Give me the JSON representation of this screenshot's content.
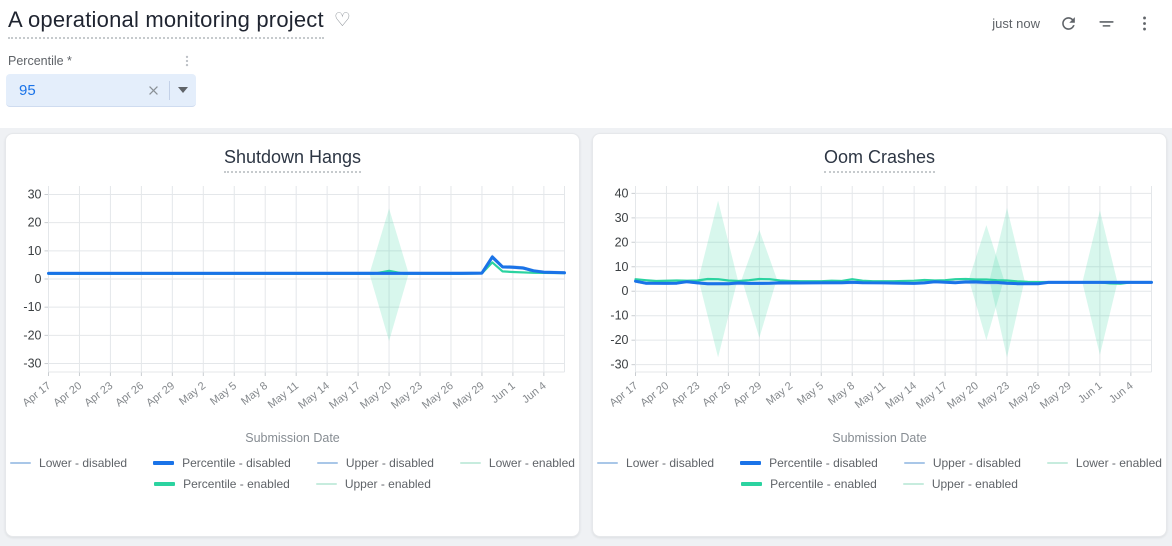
{
  "header": {
    "title": "A operational monitoring project",
    "last_refresh": "just now",
    "icons": {
      "favorite": "♡",
      "refresh": "refresh-icon",
      "filter": "filter-icon",
      "more": "more-vert-icon"
    }
  },
  "filter": {
    "label": "Percentile *",
    "value": "95",
    "icons": {
      "clear": "clear-x-icon",
      "dropdown": "caret-down-icon",
      "menu": "more-vert-icon"
    }
  },
  "colors": {
    "percentile_disabled": "#1a73e8",
    "percentile_enabled": "#2bd3a0",
    "bound_disabled": "#a9c7e8",
    "bound_enabled": "#c7ecde",
    "band_fill": "rgba(62,214,167,0.20)",
    "grid": "#e4e7ea",
    "tick": "#c9cdd1",
    "y_label": "#3c4043",
    "x_label": "#85898d"
  },
  "chart_data": [
    {
      "type": "line",
      "title": "Shutdown Hangs",
      "xlabel": "Submission Date",
      "x_tick_labels": [
        "Apr 17",
        "Apr 20",
        "Apr 23",
        "Apr 26",
        "Apr 29",
        "May 2",
        "May 5",
        "May 8",
        "May 11",
        "May 14",
        "May 17",
        "May 20",
        "May 23",
        "May 26",
        "May 29",
        "Jun 1",
        "Jun 4"
      ],
      "x_tick_days": [
        0,
        3,
        6,
        9,
        12,
        15,
        18,
        21,
        24,
        27,
        30,
        33,
        36,
        39,
        42,
        45,
        48
      ],
      "x_range": [
        0,
        50
      ],
      "ylim": [
        -33,
        33
      ],
      "y_ticks": [
        30,
        20,
        10,
        0,
        -10,
        -20,
        -30
      ],
      "series": [
        {
          "name": "Lower - disabled",
          "color": "bound_disabled",
          "width": 1.2,
          "points": [
            [
              0,
              1.65
            ],
            [
              42,
              1.7
            ],
            [
              43,
              7.2
            ],
            [
              44,
              3.9
            ],
            [
              45,
              3.8
            ],
            [
              46,
              3.5
            ],
            [
              47,
              2.6
            ],
            [
              48,
              2.1
            ],
            [
              50,
              2.0
            ]
          ]
        },
        {
          "name": "Upper - disabled",
          "color": "bound_disabled",
          "width": 1.2,
          "points": [
            [
              0,
              2.35
            ],
            [
              42,
              2.5
            ],
            [
              43,
              8.4
            ],
            [
              44,
              4.7
            ],
            [
              45,
              4.6
            ],
            [
              46,
              4.3
            ],
            [
              47,
              3.3
            ],
            [
              48,
              2.8
            ],
            [
              50,
              2.6
            ]
          ]
        },
        {
          "name": "Percentile - enabled",
          "color": "percentile_enabled",
          "width": 2.2,
          "points": [
            [
              0,
              1.85
            ],
            [
              10,
              1.85
            ],
            [
              20,
              1.85
            ],
            [
              31.5,
              1.85
            ],
            [
              33,
              2.9
            ],
            [
              34.5,
              1.85
            ],
            [
              40,
              1.85
            ],
            [
              42,
              2.0
            ],
            [
              43,
              5.9
            ],
            [
              44,
              2.7
            ],
            [
              45,
              2.5
            ],
            [
              47,
              2.2
            ],
            [
              50,
              2.1
            ]
          ]
        },
        {
          "name": "Percentile - disabled",
          "color": "percentile_disabled",
          "width": 3,
          "points": [
            [
              0,
              2
            ],
            [
              10,
              2
            ],
            [
              20,
              2
            ],
            [
              30,
              2
            ],
            [
              36,
              2
            ],
            [
              40,
              2
            ],
            [
              42,
              2.1
            ],
            [
              43,
              7.8
            ],
            [
              44,
              4.3
            ],
            [
              45,
              4.2
            ],
            [
              46,
              3.9
            ],
            [
              47,
              2.9
            ],
            [
              48,
              2.4
            ],
            [
              50,
              2.2
            ]
          ]
        }
      ],
      "bands": [
        {
          "center": 33,
          "half_width": 1.9,
          "upper": 25,
          "lower": -22,
          "base": 1.85
        }
      ],
      "legend": [
        {
          "label": "Lower - disabled",
          "color": "bound_disabled",
          "thick": false
        },
        {
          "label": "Percentile - disabled",
          "color": "percentile_disabled",
          "thick": true
        },
        {
          "label": "Upper - disabled",
          "color": "bound_disabled",
          "thick": false
        },
        {
          "label": "Lower - enabled",
          "color": "bound_enabled",
          "thick": false
        },
        {
          "label": "Percentile - enabled",
          "color": "percentile_enabled",
          "thick": true
        },
        {
          "label": "Upper - enabled",
          "color": "bound_enabled",
          "thick": false
        }
      ],
      "legend_row_split": 4
    },
    {
      "type": "line",
      "title": "Oom Crashes",
      "xlabel": "Submission Date",
      "x_tick_labels": [
        "Apr 17",
        "Apr 20",
        "Apr 23",
        "Apr 26",
        "Apr 29",
        "May 2",
        "May 5",
        "May 8",
        "May 11",
        "May 14",
        "May 17",
        "May 20",
        "May 23",
        "May 26",
        "May 29",
        "Jun 1",
        "Jun 4"
      ],
      "x_tick_days": [
        0,
        3,
        6,
        9,
        12,
        15,
        18,
        21,
        24,
        27,
        30,
        33,
        36,
        39,
        42,
        45,
        48
      ],
      "x_range": [
        0,
        50
      ],
      "ylim": [
        -33,
        43
      ],
      "y_ticks": [
        40,
        30,
        20,
        10,
        0,
        -10,
        -20,
        -30
      ],
      "series": [
        {
          "name": "Lower - disabled",
          "color": "bound_disabled",
          "width": 1.2,
          "points": [
            [
              0,
              3.7
            ],
            [
              1,
              2.9
            ],
            [
              5,
              3.5
            ],
            [
              7,
              2.7
            ],
            [
              12,
              2.8
            ],
            [
              20,
              3.1
            ],
            [
              29,
              3.5
            ],
            [
              36,
              2.9
            ],
            [
              40,
              3.2
            ],
            [
              50,
              3.2
            ]
          ]
        },
        {
          "name": "Upper - disabled",
          "color": "bound_disabled",
          "width": 1.2,
          "points": [
            [
              0,
              4.5
            ],
            [
              1,
              3.7
            ],
            [
              5,
              4.3
            ],
            [
              7,
              3.5
            ],
            [
              12,
              3.6
            ],
            [
              20,
              3.9
            ],
            [
              29,
              4.3
            ],
            [
              36,
              3.7
            ],
            [
              40,
              4.0
            ],
            [
              50,
              4.0
            ]
          ]
        },
        {
          "name": "Percentile - enabled",
          "color": "percentile_enabled",
          "width": 2.2,
          "points": [
            [
              0,
              4.9
            ],
            [
              1,
              4.5
            ],
            [
              2,
              4.2
            ],
            [
              4,
              4.4
            ],
            [
              5,
              4.3
            ],
            [
              6,
              4.4
            ],
            [
              7,
              5.0
            ],
            [
              8,
              4.9
            ],
            [
              9,
              4.4
            ],
            [
              10,
              4.2
            ],
            [
              11,
              4.5
            ],
            [
              12,
              5.0
            ],
            [
              13,
              4.9
            ],
            [
              14,
              4.4
            ],
            [
              15,
              4.2
            ],
            [
              16,
              4.1
            ],
            [
              18,
              4.1
            ],
            [
              19,
              4.3
            ],
            [
              20,
              4.2
            ],
            [
              21,
              4.9
            ],
            [
              22,
              4.3
            ],
            [
              23,
              4.1
            ],
            [
              25,
              4.1
            ],
            [
              27,
              4.3
            ],
            [
              28,
              4.6
            ],
            [
              29,
              4.4
            ],
            [
              30,
              4.5
            ],
            [
              31,
              4.9
            ],
            [
              32,
              5.0
            ],
            [
              33,
              4.8
            ],
            [
              34,
              4.8
            ],
            [
              35,
              4.5
            ],
            [
              36,
              4.4
            ],
            [
              37,
              4.0
            ],
            [
              38,
              3.8
            ],
            [
              40,
              3.7
            ],
            [
              43,
              3.7
            ],
            [
              45,
              3.6
            ],
            [
              46,
              3.2
            ],
            [
              47,
              3.1
            ],
            [
              48,
              3.6
            ],
            [
              50,
              3.6
            ]
          ]
        },
        {
          "name": "Percentile - disabled",
          "color": "percentile_disabled",
          "width": 3,
          "points": [
            [
              0,
              4.1
            ],
            [
              1,
              3.3
            ],
            [
              3,
              3.2
            ],
            [
              4,
              3.3
            ],
            [
              5,
              3.9
            ],
            [
              6,
              3.4
            ],
            [
              7,
              3.1
            ],
            [
              9,
              3.1
            ],
            [
              10,
              3.4
            ],
            [
              11,
              3.2
            ],
            [
              12,
              3.2
            ],
            [
              13,
              3.3
            ],
            [
              14,
              3.5
            ],
            [
              16,
              3.4
            ],
            [
              18,
              3.5
            ],
            [
              20,
              3.5
            ],
            [
              21,
              3.7
            ],
            [
              22,
              3.5
            ],
            [
              24,
              3.4
            ],
            [
              26,
              3.3
            ],
            [
              27,
              3.2
            ],
            [
              28,
              3.4
            ],
            [
              29,
              3.9
            ],
            [
              30,
              3.7
            ],
            [
              31,
              3.5
            ],
            [
              32,
              3.8
            ],
            [
              33,
              3.8
            ],
            [
              34,
              3.6
            ],
            [
              35,
              3.6
            ],
            [
              36,
              3.3
            ],
            [
              37,
              3.1
            ],
            [
              39,
              3.1
            ],
            [
              40,
              3.6
            ],
            [
              45,
              3.6
            ],
            [
              50,
              3.6
            ]
          ]
        }
      ],
      "bands": [
        {
          "center": 8,
          "half_width": 1.9,
          "upper": 37,
          "lower": -27,
          "base": 4.9
        },
        {
          "center": 12,
          "half_width": 1.7,
          "upper": 25,
          "lower": -19,
          "base": 5.0
        },
        {
          "center": 34,
          "half_width": 1.7,
          "upper": 27,
          "lower": -20,
          "base": 4.8
        },
        {
          "center": 36,
          "half_width": 1.7,
          "upper": 34,
          "lower": -27,
          "base": 4.4
        },
        {
          "center": 45,
          "half_width": 1.7,
          "upper": 33,
          "lower": -26,
          "base": 3.6
        }
      ],
      "legend": [
        {
          "label": "Lower - disabled",
          "color": "bound_disabled",
          "thick": false
        },
        {
          "label": "Percentile - disabled",
          "color": "percentile_disabled",
          "thick": true
        },
        {
          "label": "Upper - disabled",
          "color": "bound_disabled",
          "thick": false
        },
        {
          "label": "Lower - enabled",
          "color": "bound_enabled",
          "thick": false
        },
        {
          "label": "Percentile - enabled",
          "color": "percentile_enabled",
          "thick": true
        },
        {
          "label": "Upper - enabled",
          "color": "bound_enabled",
          "thick": false
        }
      ],
      "legend_row_split": 4
    }
  ]
}
